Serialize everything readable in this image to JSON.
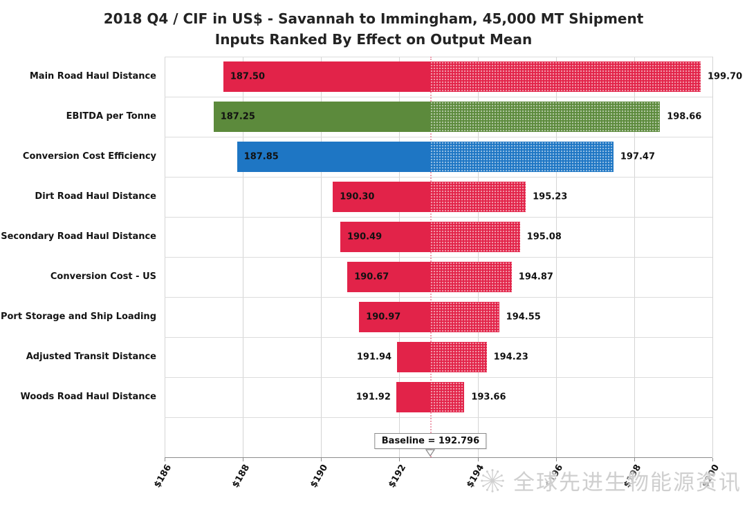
{
  "chart_data": {
    "type": "bar",
    "subtype": "tornado",
    "orientation": "horizontal",
    "title": "2018 Q4 / CIF in US$ - Savannah to Immingham, 45,000 MT Shipment",
    "subtitle": "Inputs Ranked By Effect on Output Mean",
    "xlim": [
      186,
      200
    ],
    "grid": true,
    "baseline": {
      "value": 192.796,
      "label": "Baseline = 192.796"
    },
    "xticks": [
      {
        "label": "$186",
        "value": 186
      },
      {
        "label": "$188",
        "value": 188
      },
      {
        "label": "$190",
        "value": 190
      },
      {
        "label": "$192",
        "value": 192
      },
      {
        "label": "$194",
        "value": 194
      },
      {
        "label": "$196",
        "value": 196
      },
      {
        "label": "$198",
        "value": 198
      },
      {
        "label": "$200",
        "value": 200
      }
    ],
    "bars": [
      {
        "label": "Main Road Haul Distance",
        "low": 187.5,
        "high": 199.7,
        "low_text": "187.50",
        "high_text": "199.70",
        "color": "#e22349"
      },
      {
        "label": "EBITDA per Tonne",
        "low": 187.25,
        "high": 198.66,
        "low_text": "187.25",
        "high_text": "198.66",
        "color": "#5c8a3c"
      },
      {
        "label": "Conversion Cost Efficiency",
        "low": 187.85,
        "high": 197.47,
        "low_text": "187.85",
        "high_text": "197.47",
        "color": "#1e76c4"
      },
      {
        "label": "Dirt Road Haul Distance",
        "low": 190.3,
        "high": 195.23,
        "low_text": "190.30",
        "high_text": "195.23",
        "color": "#e22349"
      },
      {
        "label": "Secondary Road Haul Distance",
        "low": 190.49,
        "high": 195.08,
        "low_text": "190.49",
        "high_text": "195.08",
        "color": "#e22349"
      },
      {
        "label": "Conversion Cost - US",
        "low": 190.67,
        "high": 194.87,
        "low_text": "190.67",
        "high_text": "194.87",
        "color": "#e22349"
      },
      {
        "label": "Port Storage and Ship Loading",
        "low": 190.97,
        "high": 194.55,
        "low_text": "190.97",
        "high_text": "194.55",
        "color": "#e22349"
      },
      {
        "label": "Adjusted Transit Distance",
        "low": 191.94,
        "high": 194.23,
        "low_text": "191.94",
        "high_text": "194.23",
        "color": "#e22349"
      },
      {
        "label": "Woods Road Haul Distance",
        "low": 191.92,
        "high": 193.66,
        "low_text": "191.92",
        "high_text": "193.66",
        "color": "#e22349"
      }
    ],
    "colors": {
      "decrease_fill": "solid",
      "increase_fill": "dotted-pattern",
      "baseline_line": "#ef9fb0"
    },
    "legend": "none"
  },
  "watermark": {
    "text": "全球先进生物能源资讯"
  }
}
